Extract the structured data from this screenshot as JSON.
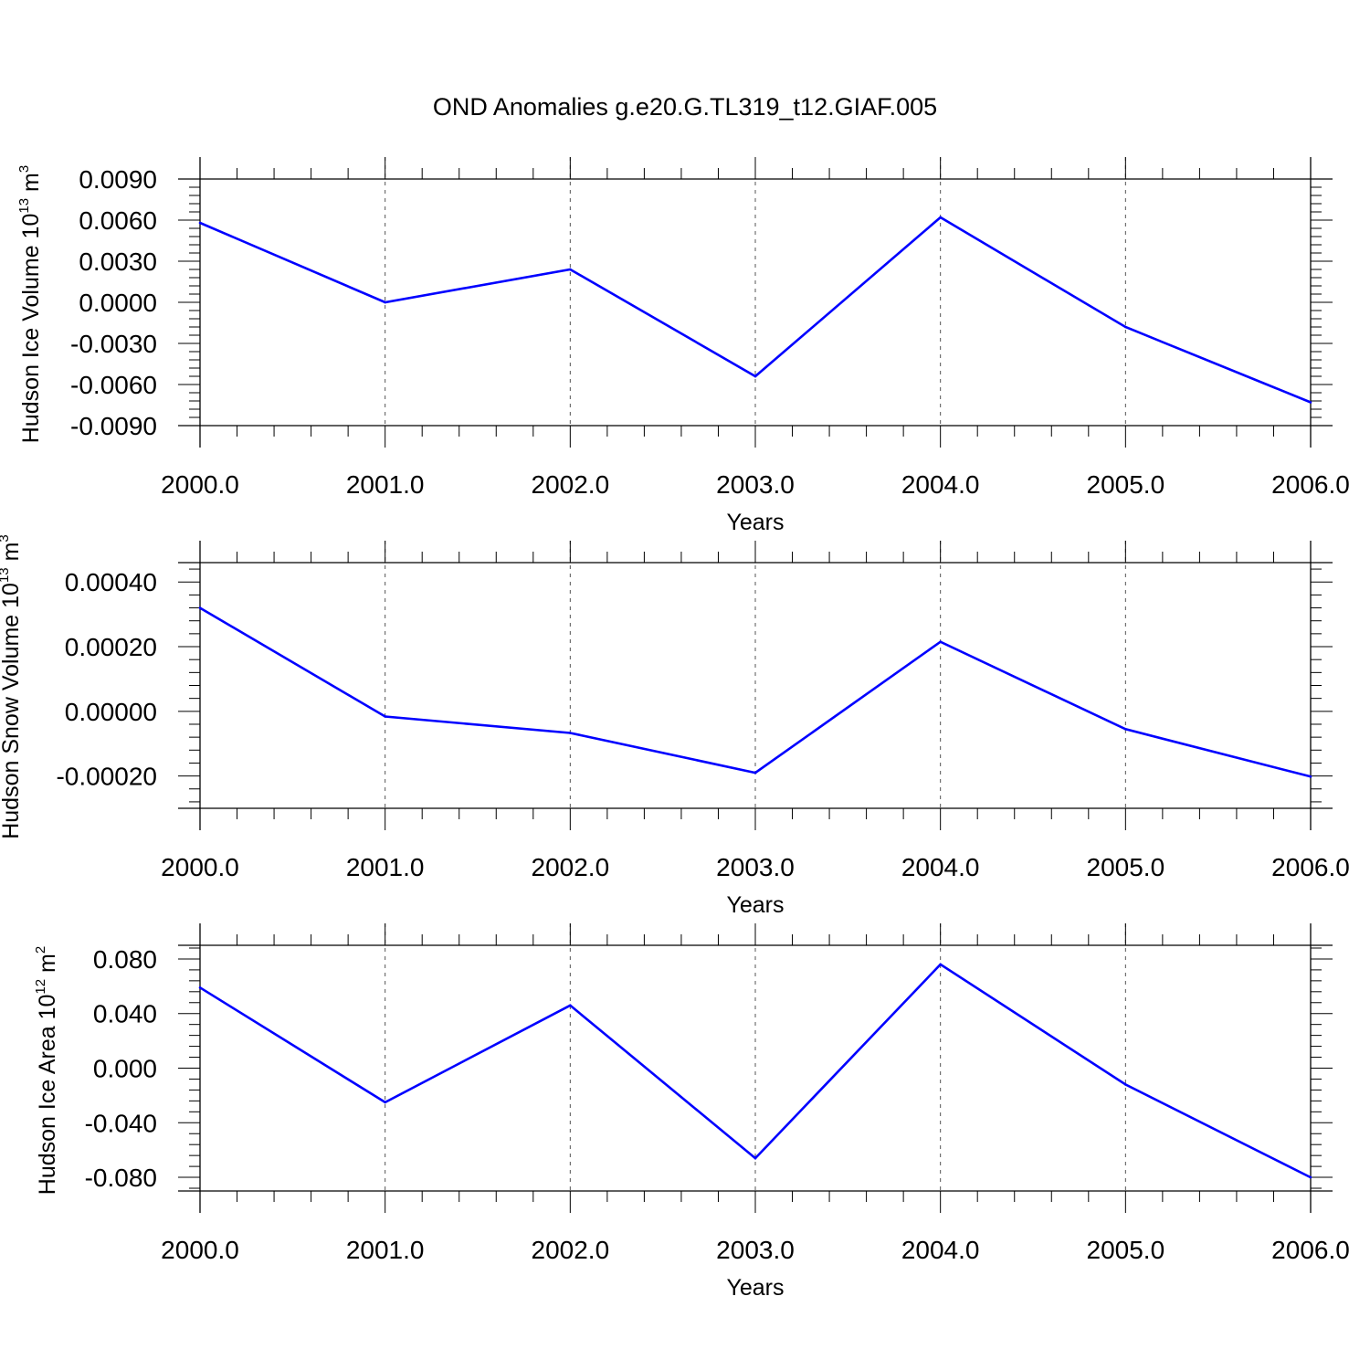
{
  "title": "OND Anomalies g.e20.G.TL319_t12.GIAF.005",
  "chart_data": [
    {
      "type": "line",
      "ylabel": "Hudson Ice Volume 10",
      "ylabel_exp": "13",
      "ylabel_unit": " m",
      "ylabel_unit_exp": "3",
      "xlabel": "Years",
      "x": [
        2000,
        2001,
        2002,
        2003,
        2004,
        2005,
        2006
      ],
      "values": [
        0.0058,
        0.0,
        0.0024,
        -0.0054,
        0.0062,
        -0.0018,
        -0.0073
      ],
      "ylim": [
        -0.009,
        0.009
      ],
      "yticks": [
        0.009,
        0.006,
        0.003,
        0.0,
        -0.003,
        -0.006,
        -0.009
      ],
      "ytick_labels": [
        "0.0090",
        "0.0060",
        "0.0030",
        "0.0000",
        "-0.0030",
        "-0.0060",
        "-0.0090"
      ],
      "xlim": [
        2000,
        2006
      ],
      "xticks": [
        2000,
        2001,
        2002,
        2003,
        2004,
        2005,
        2006
      ],
      "xtick_labels": [
        "2000.0",
        "2001.0",
        "2002.0",
        "2003.0",
        "2004.0",
        "2005.0",
        "2006.0"
      ],
      "line_color": "#0000ff",
      "grid": "dashed vertical at years"
    },
    {
      "type": "line",
      "ylabel": "Hudson Snow Volume 10",
      "ylabel_exp": "13",
      "ylabel_unit": " m",
      "ylabel_unit_exp": "3",
      "xlabel": "Years",
      "x": [
        2000,
        2001,
        2002,
        2003,
        2004,
        2005,
        2006
      ],
      "values": [
        0.00032,
        -1.6e-05,
        -6.7e-05,
        -0.00019,
        0.000215,
        -5.5e-05,
        -0.000202
      ],
      "ylim": [
        -0.0003,
        0.00046
      ],
      "yticks": [
        0.0004,
        0.0002,
        0.0,
        -0.0002
      ],
      "ytick_labels": [
        "0.00040",
        "0.00020",
        "0.00000",
        "-0.00020"
      ],
      "xlim": [
        2000,
        2006
      ],
      "xticks": [
        2000,
        2001,
        2002,
        2003,
        2004,
        2005,
        2006
      ],
      "xtick_labels": [
        "2000.0",
        "2001.0",
        "2002.0",
        "2003.0",
        "2004.0",
        "2005.0",
        "2006.0"
      ],
      "line_color": "#0000ff",
      "grid": "dashed vertical at years"
    },
    {
      "type": "line",
      "ylabel": "Hudson Ice Area 10",
      "ylabel_exp": "12",
      "ylabel_unit": " m",
      "ylabel_unit_exp": "2",
      "xlabel": "Years",
      "x": [
        2000,
        2001,
        2002,
        2003,
        2004,
        2005,
        2006
      ],
      "values": [
        0.059,
        -0.025,
        0.046,
        -0.066,
        0.076,
        -0.012,
        -0.08
      ],
      "ylim": [
        -0.09,
        0.09
      ],
      "yticks": [
        0.08,
        0.04,
        0.0,
        -0.04,
        -0.08
      ],
      "ytick_labels": [
        "0.080",
        "0.040",
        "0.000",
        "-0.040",
        "-0.080"
      ],
      "xlim": [
        2000,
        2006
      ],
      "xticks": [
        2000,
        2001,
        2002,
        2003,
        2004,
        2005,
        2006
      ],
      "xtick_labels": [
        "2000.0",
        "2001.0",
        "2002.0",
        "2003.0",
        "2004.0",
        "2005.0",
        "2006.0"
      ],
      "line_color": "#0000ff",
      "grid": "dashed vertical at years"
    }
  ]
}
